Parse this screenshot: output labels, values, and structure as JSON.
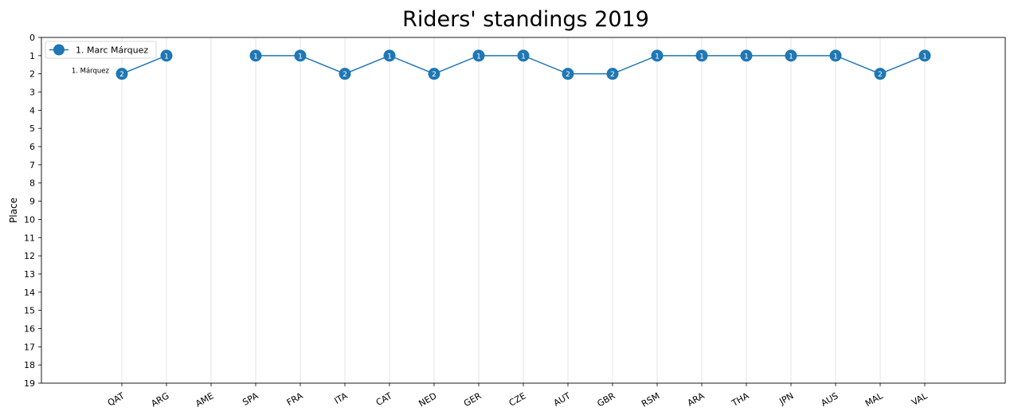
{
  "chart_data": {
    "type": "line",
    "title": "Riders' standings 2019",
    "ylabel": "Place",
    "xlabel": "",
    "categories": [
      "QAT",
      "ARG",
      "AME",
      "SPA",
      "FRA",
      "ITA",
      "CAT",
      "NED",
      "GER",
      "CZE",
      "AUT",
      "GBR",
      "RSM",
      "ARA",
      "THA",
      "JPN",
      "AUS",
      "MAL",
      "VAL"
    ],
    "ylim": [
      0,
      19
    ],
    "y_inverted": true,
    "yticks": [
      "0",
      "1",
      "2",
      "3",
      "4",
      "5",
      "6",
      "7",
      "8",
      "9",
      "10",
      "11",
      "12",
      "13",
      "14",
      "15",
      "16",
      "17",
      "18",
      "19"
    ],
    "grid": "vertical",
    "legend_position": "top-left",
    "series": [
      {
        "name": "1. Marc Márquez",
        "start_label": "1. Márquez",
        "color": "#1f77b4",
        "values": [
          2,
          1,
          null,
          1,
          1,
          2,
          1,
          2,
          1,
          1,
          2,
          2,
          1,
          1,
          1,
          1,
          1,
          2,
          1
        ],
        "marker_labels": [
          "2",
          "1",
          "",
          "1",
          "1",
          "2",
          "1",
          "2",
          "1",
          "1",
          "2",
          "2",
          "1",
          "1",
          "1",
          "1",
          "1",
          "2",
          "1"
        ]
      }
    ]
  }
}
